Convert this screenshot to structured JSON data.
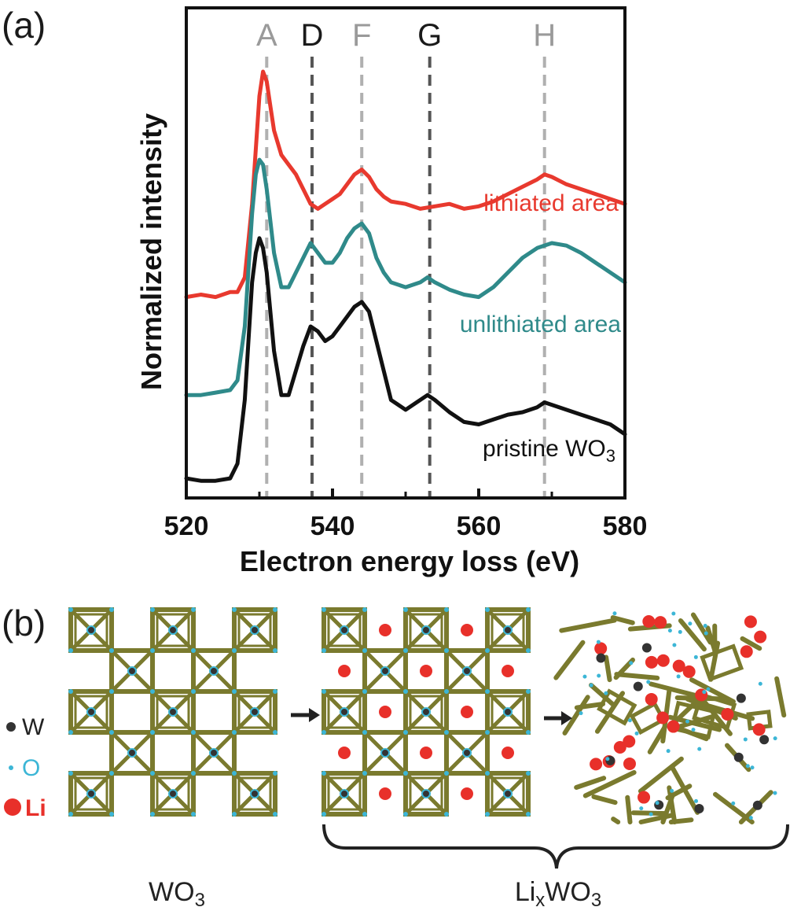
{
  "panel_a_label": "(a)",
  "panel_b_label": "(b)",
  "colors": {
    "lithiated": "#e8392e",
    "unlithiated": "#2f8a8a",
    "pristine": "#111111",
    "octahedron": "#7a7a2e",
    "w_atom": "#333333",
    "o_atom": "#3cb6d6",
    "li_atom": "#e8302a",
    "peak_light": "#b0b0b0",
    "peak_dark": "#555555"
  },
  "chart_data": {
    "type": "line",
    "xlabel": "Electron energy loss (eV)",
    "ylabel": "Normalized intensity",
    "xlim": [
      520,
      580
    ],
    "ylim": [
      0,
      10
    ],
    "x_ticks": [
      520,
      540,
      560,
      580
    ],
    "x_minor_ticks": [
      530,
      550,
      570
    ],
    "peaks": [
      {
        "label": "A",
        "x": 531,
        "style": "light"
      },
      {
        "label": "D",
        "x": 537.2,
        "style": "dark"
      },
      {
        "label": "F",
        "x": 544,
        "style": "light"
      },
      {
        "label": "G",
        "x": 553.3,
        "style": "dark"
      },
      {
        "label": "H",
        "x": 569,
        "style": "light"
      }
    ],
    "series": [
      {
        "name": "lithiated area",
        "color_key": "lithiated",
        "x": [
          520,
          522,
          524,
          526,
          527,
          528,
          529,
          530,
          530.5,
          531,
          531.5,
          532,
          533,
          534,
          535,
          536,
          537,
          538,
          539,
          540,
          541,
          542,
          543,
          544,
          545,
          546,
          547,
          548,
          550,
          552,
          554,
          556,
          558,
          560,
          562,
          564,
          566,
          568,
          569,
          570,
          572,
          574,
          576,
          578,
          580
        ],
        "y": [
          4.1,
          4.15,
          4.1,
          4.2,
          4.2,
          4.5,
          6.0,
          8.2,
          8.7,
          8.5,
          8.0,
          7.5,
          7.0,
          6.8,
          6.6,
          6.3,
          6.0,
          5.9,
          6.0,
          6.1,
          6.2,
          6.4,
          6.6,
          6.7,
          6.55,
          6.3,
          6.15,
          6.05,
          6.0,
          5.9,
          5.95,
          6.0,
          5.9,
          5.95,
          6.05,
          6.2,
          6.35,
          6.5,
          6.6,
          6.55,
          6.4,
          6.3,
          6.2,
          6.1,
          6.0
        ]
      },
      {
        "name": "unlithiated area",
        "color_key": "unlithiated",
        "x": [
          520,
          522,
          524,
          526,
          527,
          528,
          529,
          529.5,
          530,
          530.5,
          531,
          532,
          533,
          534,
          535,
          536,
          537,
          538,
          539,
          540,
          541,
          542,
          543,
          544,
          545,
          546,
          547,
          548,
          550,
          552,
          553,
          554,
          556,
          558,
          560,
          562,
          564,
          566,
          568,
          570,
          572,
          574,
          576,
          578,
          580
        ],
        "y": [
          2.1,
          2.1,
          2.15,
          2.2,
          2.4,
          3.5,
          5.8,
          6.6,
          6.9,
          6.8,
          6.3,
          5.0,
          4.3,
          4.3,
          4.6,
          4.9,
          5.2,
          5.0,
          4.8,
          4.8,
          5.0,
          5.3,
          5.5,
          5.6,
          5.4,
          4.9,
          4.6,
          4.4,
          4.3,
          4.4,
          4.5,
          4.4,
          4.25,
          4.15,
          4.1,
          4.3,
          4.6,
          4.9,
          5.1,
          5.2,
          5.15,
          5.0,
          4.8,
          4.6,
          4.4
        ]
      },
      {
        "name": "pristine WO3",
        "color_key": "pristine",
        "x": [
          520,
          522,
          524,
          526,
          527,
          528,
          529,
          529.5,
          530,
          530.5,
          531,
          532,
          533,
          534,
          535,
          536,
          537,
          538,
          539,
          540,
          541,
          542,
          543,
          544,
          545,
          546,
          547,
          548,
          550,
          552,
          553,
          554,
          556,
          558,
          560,
          562,
          564,
          566,
          568,
          569,
          570,
          572,
          574,
          576,
          578,
          580
        ],
        "y": [
          0.4,
          0.35,
          0.35,
          0.4,
          0.7,
          2.0,
          4.4,
          5.0,
          5.3,
          5.1,
          4.6,
          3.0,
          2.1,
          2.1,
          2.6,
          3.1,
          3.5,
          3.4,
          3.2,
          3.3,
          3.5,
          3.7,
          3.9,
          4.0,
          3.8,
          3.2,
          2.6,
          2.0,
          1.8,
          2.0,
          2.1,
          2.0,
          1.75,
          1.55,
          1.5,
          1.6,
          1.7,
          1.75,
          1.85,
          1.95,
          1.9,
          1.8,
          1.7,
          1.6,
          1.5,
          1.3
        ]
      }
    ],
    "curve_labels": [
      {
        "text": "lithiated area",
        "color_key": "lithiated"
      },
      {
        "text": "unlithiated area",
        "color_key": "unlithiated"
      },
      {
        "text": "pristine WO",
        "subscript": "3",
        "color_key": "pristine"
      }
    ]
  },
  "panel_b": {
    "legend": [
      {
        "symbol": "W",
        "label": "W",
        "color_key": "w_atom"
      },
      {
        "symbol": "O",
        "label": "O",
        "color_key": "o_atom"
      },
      {
        "symbol": "Li",
        "label": "Li",
        "color_key": "li_atom"
      }
    ],
    "structures": [
      {
        "name": "WO3 lattice",
        "type": "ordered"
      },
      {
        "name": "LixWO3 ordered lattice",
        "type": "lithiated-ordered"
      },
      {
        "name": "LixWO3 amorphous",
        "type": "amorphous"
      }
    ],
    "caption_wo3": {
      "text": "WO",
      "subscript": "3"
    },
    "caption_lixwo3": {
      "pre": "Li",
      "sub1": "x",
      "mid": "WO",
      "sub2": "3"
    }
  }
}
